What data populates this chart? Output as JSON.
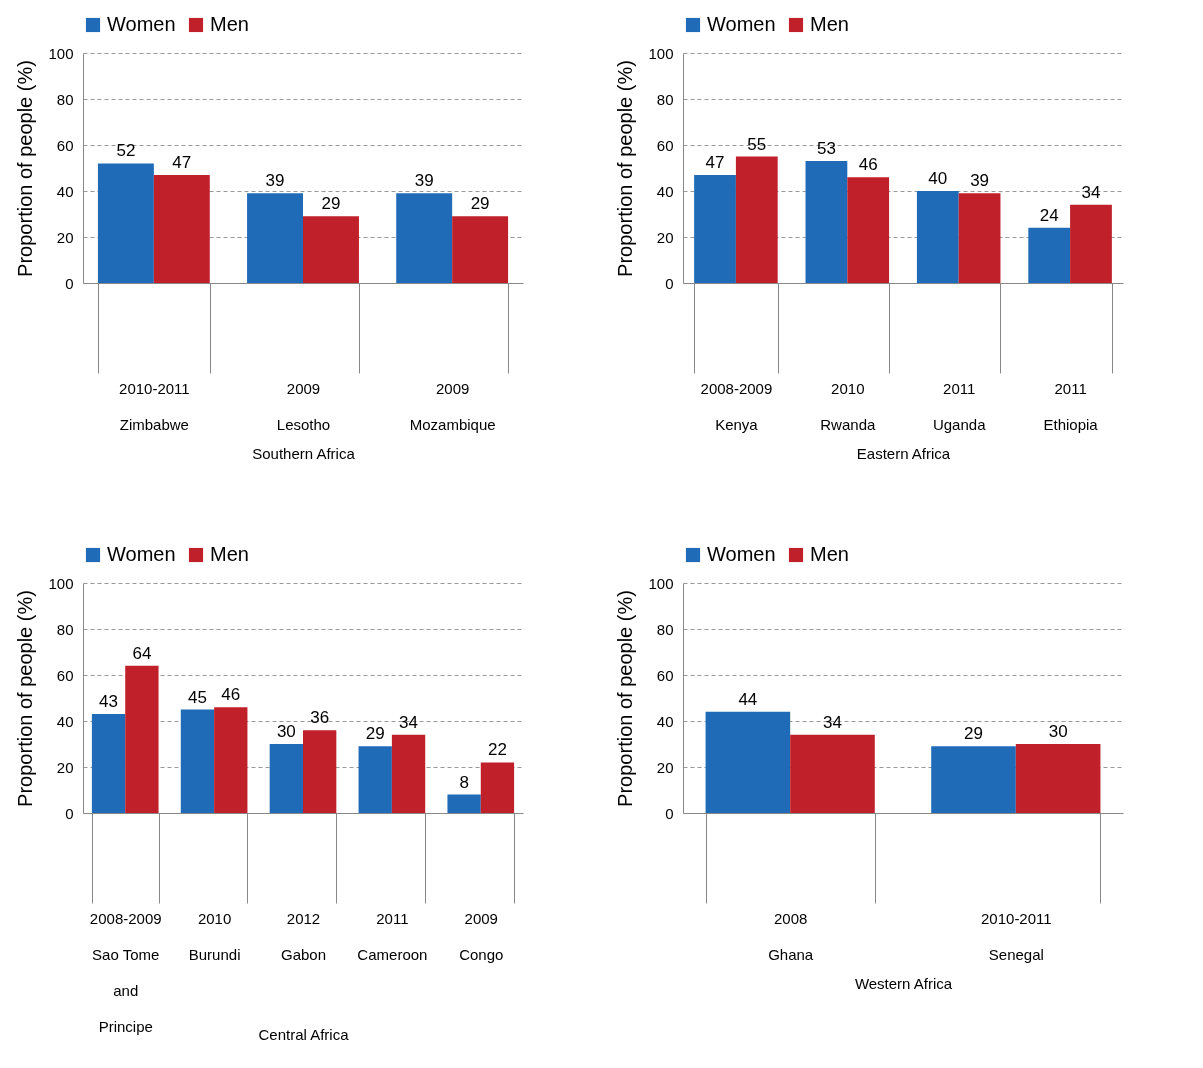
{
  "chart_data": [
    {
      "type": "bar",
      "categories": [
        "2010-2011\nZimbabwe",
        "2009\nLesotho",
        "2009\nMozambique"
      ],
      "xlabel": "Southern Africa",
      "ylabel": "Proportion of people (%)",
      "ylim": [
        0,
        100
      ],
      "yticks": [
        0,
        20,
        40,
        60,
        80,
        100
      ],
      "grid": "y",
      "legend": "top",
      "data_labels": true,
      "series": [
        {
          "name": "Women",
          "color": "#1f6bb8",
          "values": [
            52,
            39,
            39
          ]
        },
        {
          "name": "Men",
          "color": "#c0202a",
          "values": [
            47,
            29,
            29
          ]
        }
      ]
    },
    {
      "type": "bar",
      "categories": [
        "2008-2009\nKenya",
        "2010\nRwanda",
        "2011\nUganda",
        "2011\nEthiopia"
      ],
      "xlabel": "Eastern Africa",
      "ylabel": "Proportion of people (%)",
      "ylim": [
        0,
        100
      ],
      "yticks": [
        0,
        20,
        40,
        60,
        80,
        100
      ],
      "grid": "y",
      "legend": "top",
      "data_labels": true,
      "series": [
        {
          "name": "Women",
          "color": "#1f6bb8",
          "values": [
            47,
            53,
            40,
            24
          ]
        },
        {
          "name": "Men",
          "color": "#c0202a",
          "values": [
            55,
            46,
            39,
            34
          ]
        }
      ]
    },
    {
      "type": "bar",
      "categories": [
        "2008-2009\nSao Tome\nand\nPrincipe",
        "2010\nBurundi",
        "2012\nGabon",
        "2011\nCameroon",
        "2009\nCongo"
      ],
      "xlabel": "Central Africa",
      "ylabel": "Proportion of people (%)",
      "ylim": [
        0,
        100
      ],
      "yticks": [
        0,
        20,
        40,
        60,
        80,
        100
      ],
      "grid": "y",
      "legend": "top",
      "data_labels": true,
      "series": [
        {
          "name": "Women",
          "color": "#1f6bb8",
          "values": [
            43,
            45,
            30,
            29,
            8
          ]
        },
        {
          "name": "Men",
          "color": "#c0202a",
          "values": [
            64,
            46,
            36,
            34,
            22
          ]
        }
      ]
    },
    {
      "type": "bar",
      "categories": [
        "2008\nGhana",
        "2010-2011\nSenegal"
      ],
      "xlabel": "Western Africa",
      "ylabel": "Proportion of people (%)",
      "ylim": [
        0,
        100
      ],
      "yticks": [
        0,
        20,
        40,
        60,
        80,
        100
      ],
      "grid": "y",
      "legend": "top",
      "data_labels": true,
      "series": [
        {
          "name": "Women",
          "color": "#1f6bb8",
          "values": [
            44,
            29
          ]
        },
        {
          "name": "Men",
          "color": "#c0202a",
          "values": [
            34,
            30
          ]
        }
      ]
    }
  ]
}
